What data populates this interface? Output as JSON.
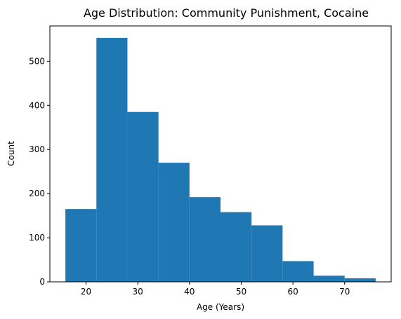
{
  "chart_data": {
    "type": "bar",
    "title": "Age Distribution: Community Punishment, Cocaine",
    "xlabel": "Age (Years)",
    "ylabel": "Count",
    "bins": [
      {
        "start": 16,
        "end": 22,
        "count": 165
      },
      {
        "start": 22,
        "end": 28,
        "count": 553
      },
      {
        "start": 28,
        "end": 34,
        "count": 385
      },
      {
        "start": 34,
        "end": 40,
        "count": 270
      },
      {
        "start": 40,
        "end": 46,
        "count": 192
      },
      {
        "start": 46,
        "end": 52,
        "count": 158
      },
      {
        "start": 52,
        "end": 58,
        "count": 128
      },
      {
        "start": 58,
        "end": 64,
        "count": 47
      },
      {
        "start": 64,
        "end": 70,
        "count": 14
      },
      {
        "start": 70,
        "end": 76,
        "count": 8
      }
    ],
    "xlim": [
      13,
      79
    ],
    "ylim": [
      0,
      580
    ],
    "xticks": [
      20,
      30,
      40,
      50,
      60,
      70
    ],
    "yticks": [
      0,
      100,
      200,
      300,
      400,
      500
    ],
    "grid": false,
    "bar_color": "#1f77b4"
  }
}
